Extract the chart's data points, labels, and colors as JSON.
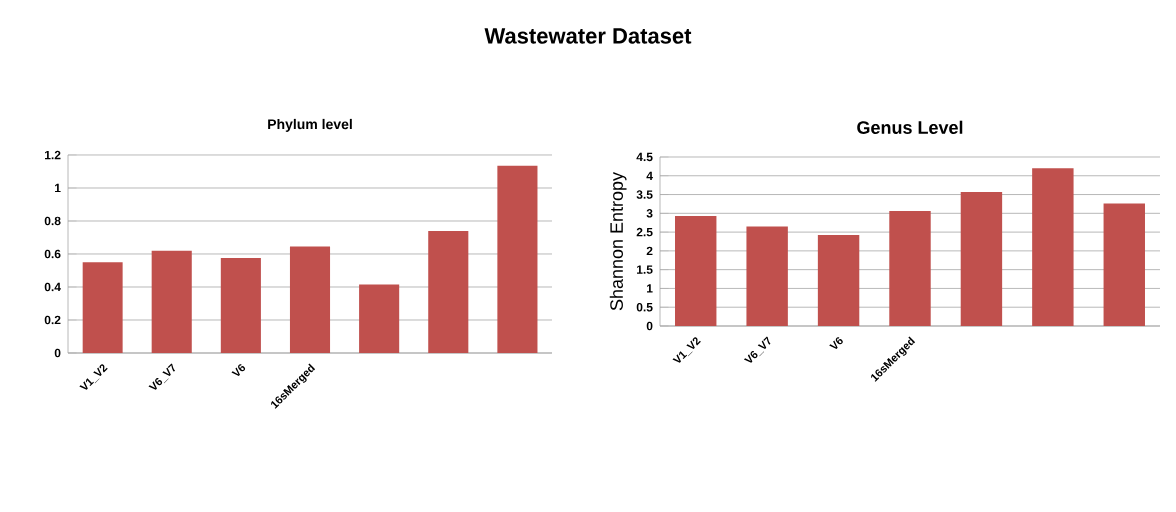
{
  "chart_data": [
    {
      "type": "bar",
      "title": "Phylum level",
      "annotations": [
        "Wastewater Dataset"
      ],
      "categories": [
        "V1_V2",
        "V6_V7",
        "V6",
        "16sMerged",
        null,
        null,
        null
      ],
      "values": [
        0.55,
        0.62,
        0.575,
        0.645,
        0.415,
        0.74,
        1.135
      ],
      "color": "#c0504d",
      "ylim": [
        0,
        1.2
      ],
      "yticks": [
        0,
        0.2,
        0.4,
        0.6,
        0.8,
        1,
        1.2
      ],
      "grid": "y"
    },
    {
      "type": "bar",
      "title": "Genus Level",
      "ylabel": "Shannon Entropy",
      "categories": [
        "V1_V2",
        "V6_V7",
        "V6",
        "16sMerged",
        null,
        null,
        null
      ],
      "values": [
        2.93,
        2.65,
        2.42,
        3.06,
        3.57,
        4.2,
        3.26
      ],
      "color": "#c0504d",
      "ylim": [
        0,
        4.5
      ],
      "yticks": [
        0,
        0.5,
        1,
        1.5,
        2,
        2.5,
        3,
        3.5,
        4,
        4.5
      ],
      "grid": "y"
    }
  ]
}
